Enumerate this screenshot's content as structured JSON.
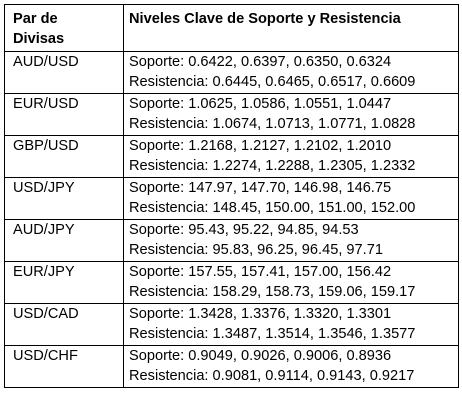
{
  "header": {
    "pair_col_line1": "Par de",
    "pair_col_line2": "Divisas",
    "levels_col": "Niveles Clave de Soporte y Resistencia"
  },
  "rows": [
    {
      "pair": "AUD/USD",
      "support": "Soporte: 0.6422, 0.6397, 0.6350, 0.6324",
      "resistance": "Resistencia: 0.6445, 0.6465, 0.6517, 0.6609"
    },
    {
      "pair": "EUR/USD",
      "support": "Soporte: 1.0625, 1.0586, 1.0551, 1.0447",
      "resistance": "Resistencia: 1.0674, 1.0713, 1.0771, 1.0828"
    },
    {
      "pair": "GBP/USD",
      "support": "Soporte: 1.2168, 1.2127, 1.2102, 1.2010",
      "resistance": "Resistencia: 1.2274, 1.2288, 1.2305, 1.2332"
    },
    {
      "pair": "USD/JPY",
      "support": "Soporte: 147.97, 147.70, 146.98, 146.75",
      "resistance": "Resistencia: 148.45, 150.00, 151.00, 152.00"
    },
    {
      "pair": "AUD/JPY",
      "support": "Soporte: 95.43, 95.22, 94.85, 94.53",
      "resistance": "Resistencia: 95.83, 96.25, 96.45, 97.71"
    },
    {
      "pair": "EUR/JPY",
      "support": "Soporte: 157.55, 157.41, 157.00, 156.42",
      "resistance": "Resistencia: 158.29, 158.73, 159.06, 159.17"
    },
    {
      "pair": "USD/CAD",
      "support": "Soporte: 1.3428, 1.3376, 1.3320, 1.3301",
      "resistance": "Resistencia: 1.3487, 1.3514, 1.3546, 1.3577"
    },
    {
      "pair": "USD/CHF",
      "support": "Soporte: 0.9049, 0.9026, 0.9006, 0.8936",
      "resistance": "Resistencia: 0.9081, 0.9114, 0.9143, 0.9217"
    }
  ]
}
